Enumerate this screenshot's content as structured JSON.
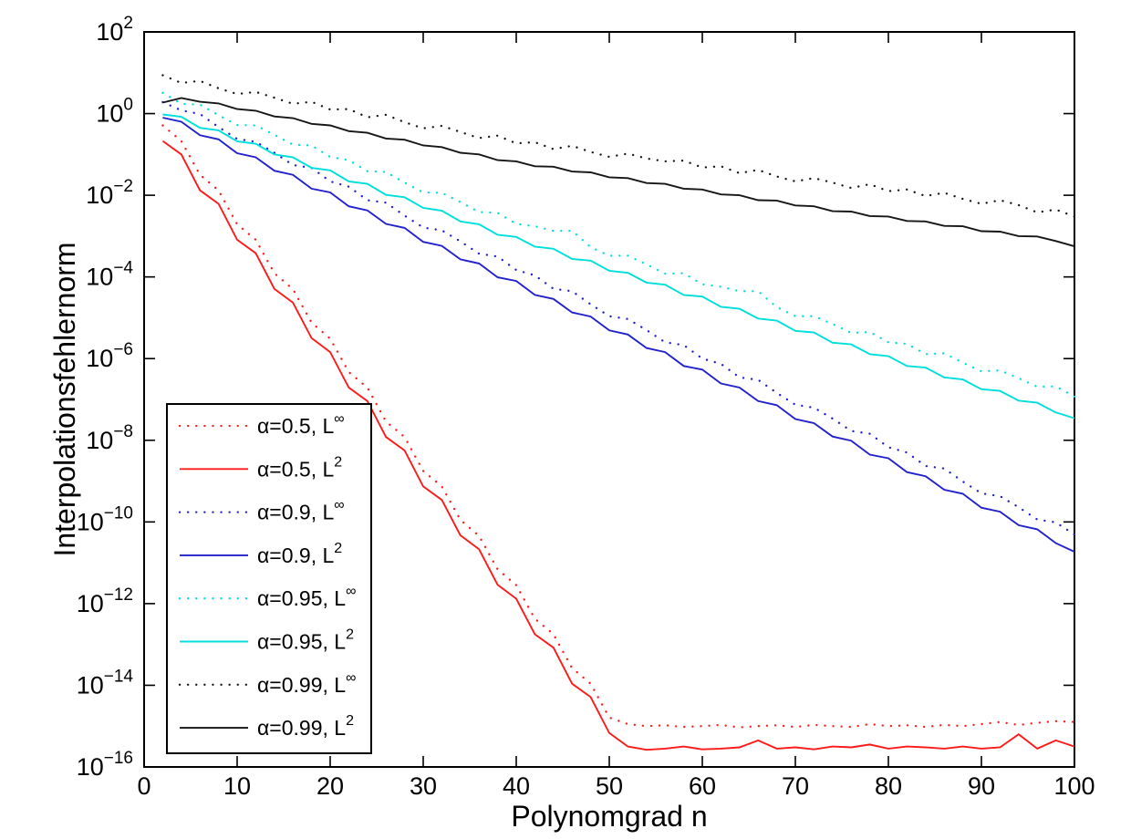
{
  "chart_data": {
    "type": "line",
    "title": "",
    "xlabel": "Polynomgrad n",
    "ylabel": "Interpolationsfehlernorm",
    "x_axis": {
      "min": 0,
      "max": 100,
      "ticks": [
        0,
        10,
        20,
        30,
        40,
        50,
        60,
        70,
        80,
        90,
        100
      ]
    },
    "y_axis": {
      "scale": "log10",
      "top_exponent": 2,
      "bottom_exponent": -16,
      "tick_exponents": [
        2,
        0,
        -2,
        -4,
        -6,
        -8,
        -10,
        -12,
        -14,
        -16
      ],
      "tick_base": "10"
    },
    "grid": false,
    "legend": {
      "position": "bottom-left",
      "border": true
    },
    "x": [
      2,
      4,
      6,
      8,
      10,
      12,
      14,
      16,
      18,
      20,
      22,
      24,
      26,
      28,
      30,
      32,
      34,
      36,
      38,
      40,
      42,
      44,
      46,
      48,
      50,
      52,
      54,
      56,
      58,
      60,
      62,
      64,
      66,
      68,
      70,
      72,
      74,
      76,
      78,
      80,
      82,
      84,
      86,
      88,
      90,
      92,
      94,
      96,
      98,
      100
    ],
    "series": [
      {
        "id": "alpha-0.5-linf",
        "name": "α=0.5, L∞",
        "label_base": "α=0.5, L",
        "label_sup": "∞",
        "color": "#ff1a1a",
        "style": "dotted",
        "log10_values": [
          -0.29,
          -0.67,
          -1.5,
          -1.88,
          -2.71,
          -3.09,
          -3.91,
          -4.3,
          -5.12,
          -5.51,
          -6.33,
          -6.71,
          -7.54,
          -7.92,
          -8.75,
          -9.13,
          -9.95,
          -10.34,
          -11.16,
          -11.55,
          -12.37,
          -12.75,
          -13.58,
          -13.96,
          -14.79,
          -14.95,
          -15.0,
          -14.98,
          -15.02,
          -15.0,
          -14.97,
          -15.03,
          -15.0,
          -14.98,
          -15.02,
          -14.97,
          -15.0,
          -15.02,
          -14.95,
          -15.0,
          -14.98,
          -15.02,
          -14.97,
          -15.0,
          -14.95,
          -14.9,
          -14.97,
          -14.92,
          -14.88,
          -14.9
        ]
      },
      {
        "id": "alpha-0.5-l2",
        "name": "α=0.5, L2",
        "label_base": "α=0.5, L",
        "label_sup": "2",
        "color": "#ff1a1a",
        "style": "solid",
        "log10_values": [
          -0.67,
          -1.0,
          -1.88,
          -2.21,
          -3.09,
          -3.42,
          -4.29,
          -4.63,
          -5.5,
          -5.84,
          -6.71,
          -7.04,
          -7.92,
          -8.25,
          -9.13,
          -9.46,
          -10.33,
          -10.67,
          -11.54,
          -11.88,
          -12.75,
          -13.08,
          -13.96,
          -14.29,
          -15.17,
          -15.5,
          -15.58,
          -15.55,
          -15.5,
          -15.57,
          -15.55,
          -15.52,
          -15.35,
          -15.55,
          -15.52,
          -15.57,
          -15.5,
          -15.52,
          -15.45,
          -15.55,
          -15.5,
          -15.52,
          -15.55,
          -15.5,
          -15.55,
          -15.52,
          -15.2,
          -15.55,
          -15.35,
          -15.5
        ]
      },
      {
        "id": "alpha-0.9-linf",
        "name": "α=0.9, L∞",
        "label_base": "α=0.9, L",
        "label_sup": "∞",
        "color": "#2222cc",
        "style": "dotted",
        "log10_values": [
          0.28,
          0.08,
          -0.01,
          -0.33,
          -0.62,
          -0.69,
          -0.96,
          -1.26,
          -1.33,
          -1.66,
          -1.79,
          -2.12,
          -2.18,
          -2.5,
          -2.79,
          -2.86,
          -3.13,
          -3.43,
          -3.5,
          -3.83,
          -3.96,
          -4.29,
          -4.35,
          -4.67,
          -4.96,
          -5.03,
          -5.3,
          -5.6,
          -5.67,
          -6.0,
          -6.13,
          -6.46,
          -6.52,
          -6.84,
          -7.13,
          -7.2,
          -7.47,
          -7.77,
          -7.84,
          -8.17,
          -8.3,
          -8.63,
          -8.69,
          -9.01,
          -9.3,
          -9.37,
          -9.64,
          -9.94,
          -10.01,
          -10.31
        ]
      },
      {
        "id": "alpha-0.9-l2",
        "name": "α=0.9, L2",
        "label_base": "α=0.9, L",
        "label_sup": "2",
        "color": "#2222cc",
        "style": "solid",
        "log10_values": [
          -0.1,
          -0.2,
          -0.53,
          -0.63,
          -0.97,
          -1.07,
          -1.4,
          -1.5,
          -1.84,
          -1.93,
          -2.27,
          -2.37,
          -2.7,
          -2.8,
          -3.14,
          -3.24,
          -3.57,
          -3.67,
          -4.01,
          -4.1,
          -4.44,
          -4.54,
          -4.87,
          -4.97,
          -5.31,
          -5.41,
          -5.74,
          -5.84,
          -6.18,
          -6.27,
          -6.61,
          -6.71,
          -7.04,
          -7.14,
          -7.48,
          -7.58,
          -7.91,
          -8.01,
          -8.35,
          -8.44,
          -8.78,
          -8.88,
          -9.21,
          -9.31,
          -9.65,
          -9.75,
          -10.08,
          -10.18,
          -10.52,
          -10.73
        ]
      },
      {
        "id": "alpha-0.95-linf",
        "name": "α=0.95, L∞",
        "label_base": "α=0.95, L",
        "label_sup": "∞",
        "color": "#00dede",
        "style": "dotted",
        "log10_values": [
          0.51,
          0.24,
          0.22,
          -0.04,
          -0.28,
          -0.29,
          -0.52,
          -0.76,
          -0.78,
          -1.06,
          -1.14,
          -1.41,
          -1.43,
          -1.69,
          -1.93,
          -1.94,
          -2.17,
          -2.41,
          -2.43,
          -2.7,
          -2.76,
          -2.87,
          -2.87,
          -3.27,
          -3.48,
          -3.48,
          -3.69,
          -3.92,
          -3.91,
          -4.18,
          -4.24,
          -4.35,
          -4.35,
          -4.74,
          -4.96,
          -4.96,
          -5.15,
          -5.37,
          -5.35,
          -5.6,
          -5.64,
          -5.89,
          -5.87,
          -6.1,
          -6.31,
          -6.29,
          -6.48,
          -6.69,
          -6.68,
          -6.93
        ]
      },
      {
        "id": "alpha-0.95-l2",
        "name": "α=0.95, L2",
        "label_base": "α=0.95, L",
        "label_sup": "2",
        "color": "#00dede",
        "style": "solid",
        "log10_values": [
          -0.02,
          -0.08,
          -0.35,
          -0.41,
          -0.68,
          -0.74,
          -1.0,
          -1.07,
          -1.33,
          -1.39,
          -1.66,
          -1.72,
          -1.99,
          -2.05,
          -2.31,
          -2.38,
          -2.64,
          -2.71,
          -2.97,
          -3.02,
          -3.26,
          -3.31,
          -3.56,
          -3.6,
          -3.85,
          -3.9,
          -4.14,
          -4.19,
          -4.44,
          -4.48,
          -4.73,
          -4.78,
          -5.02,
          -5.07,
          -5.32,
          -5.36,
          -5.61,
          -5.65,
          -5.89,
          -5.94,
          -6.18,
          -6.22,
          -6.46,
          -6.51,
          -6.75,
          -6.79,
          -7.03,
          -7.08,
          -7.32,
          -7.46
        ]
      },
      {
        "id": "alpha-0.99-linf",
        "name": "α=0.99, L∞",
        "label_base": "α=0.99, L",
        "label_sup": "∞",
        "color": "#161616",
        "style": "dotted",
        "log10_values": [
          0.94,
          0.75,
          0.8,
          0.62,
          0.48,
          0.53,
          0.39,
          0.24,
          0.29,
          0.1,
          0.11,
          -0.09,
          -0.03,
          -0.21,
          -0.36,
          -0.3,
          -0.45,
          -0.6,
          -0.54,
          -0.73,
          -0.7,
          -0.87,
          -0.79,
          -0.94,
          -1.06,
          -0.98,
          -1.1,
          -1.17,
          -1.15,
          -1.32,
          -1.29,
          -1.46,
          -1.38,
          -1.54,
          -1.66,
          -1.58,
          -1.69,
          -1.82,
          -1.73,
          -1.9,
          -1.86,
          -2.02,
          -1.94,
          -2.09,
          -2.21,
          -2.12,
          -2.24,
          -2.42,
          -2.35,
          -2.52
        ]
      },
      {
        "id": "alpha-0.99-l2",
        "name": "α=0.99, L2",
        "label_base": "α=0.99, L",
        "label_sup": "2",
        "color": "#161616",
        "style": "solid",
        "log10_values": [
          0.27,
          0.38,
          0.29,
          0.25,
          0.11,
          0.07,
          -0.07,
          -0.11,
          -0.25,
          -0.29,
          -0.43,
          -0.47,
          -0.61,
          -0.64,
          -0.78,
          -0.82,
          -0.96,
          -1.0,
          -1.14,
          -1.17,
          -1.29,
          -1.3,
          -1.42,
          -1.44,
          -1.56,
          -1.58,
          -1.7,
          -1.72,
          -1.84,
          -1.86,
          -1.98,
          -2.0,
          -2.12,
          -2.13,
          -2.25,
          -2.27,
          -2.39,
          -2.4,
          -2.51,
          -2.52,
          -2.63,
          -2.64,
          -2.75,
          -2.76,
          -2.88,
          -2.89,
          -3.0,
          -3.01,
          -3.12,
          -3.25
        ]
      }
    ]
  }
}
